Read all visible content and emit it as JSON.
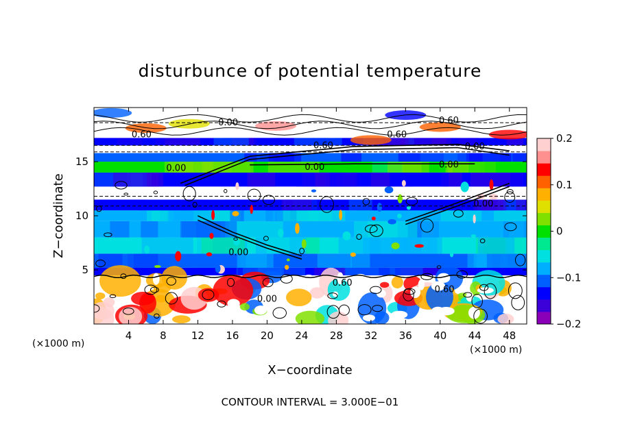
{
  "chart_data": {
    "type": "heatmap",
    "title": "disturbunce of potential temperature",
    "xlabel": "X−coordinate",
    "ylabel": "Z−coordinate",
    "x_unit": "(×1000 m)",
    "y_unit": "(×1000 m)",
    "xlim": [
      0,
      50
    ],
    "ylim": [
      0,
      20
    ],
    "x_ticks": [
      4,
      8,
      12,
      16,
      20,
      24,
      28,
      32,
      36,
      40,
      44,
      48
    ],
    "y_ticks": [
      5,
      10,
      15
    ],
    "colorbar": {
      "range": [
        -0.2,
        0.2
      ],
      "ticks": [
        {
          "value": 0.2,
          "label": "0.2"
        },
        {
          "value": 0.1,
          "label": "0.1"
        },
        {
          "value": 0,
          "label": "0"
        },
        {
          "value": -0.1,
          "label": "−0.1"
        },
        {
          "value": -0.2,
          "label": "−0.2"
        }
      ],
      "colors": [
        "#8a00b8",
        "#3c00d8",
        "#0000ff",
        "#0060ff",
        "#00b0ff",
        "#00e0e0",
        "#00e890",
        "#00e000",
        "#80e000",
        "#e0e000",
        "#ffb000",
        "#ff6000",
        "#ff0000",
        "#ff9090",
        "#ffd0d0"
      ]
    },
    "layers": [
      {
        "z_bottom": 0,
        "z_top": 4.5,
        "value": 0.05,
        "kind": "turbulent"
      },
      {
        "z_bottom": 4.5,
        "z_top": 5.2,
        "value": -0.13
      },
      {
        "z_bottom": 5.2,
        "z_top": 6.5,
        "value": -0.1
      },
      {
        "z_bottom": 6.5,
        "z_top": 8.0,
        "value": -0.06
      },
      {
        "z_bottom": 8.0,
        "z_top": 9.5,
        "value": -0.09
      },
      {
        "z_bottom": 9.5,
        "z_top": 10.5,
        "value": -0.07
      },
      {
        "z_bottom": 10.5,
        "z_top": 11.5,
        "value": -0.14
      },
      {
        "z_bottom": 11.5,
        "z_top": 12.7,
        "value": 0.3
      },
      {
        "z_bottom": 12.7,
        "z_top": 14.0,
        "value": -0.14
      },
      {
        "z_bottom": 14.0,
        "z_top": 15.0,
        "value": 0.01
      },
      {
        "z_bottom": 15.0,
        "z_top": 15.8,
        "value": -0.11
      },
      {
        "z_bottom": 15.8,
        "z_top": 16.5,
        "value": 0.3
      },
      {
        "z_bottom": 16.5,
        "z_top": 17.2,
        "value": -0.14
      },
      {
        "z_bottom": 17.2,
        "z_top": 18.8,
        "value": 0.3
      },
      {
        "z_bottom": 18.8,
        "z_top": 20.0,
        "value": 0.3
      }
    ],
    "contour_labels": [
      {
        "text": "0.00",
        "x": 15.5,
        "z": 18.6
      },
      {
        "text": "0.60",
        "x": 5.5,
        "z": 17.5
      },
      {
        "text": "0.60",
        "x": 41,
        "z": 18.8
      },
      {
        "text": "0.60",
        "x": 35,
        "z": 17.5
      },
      {
        "text": "0.60",
        "x": 26.5,
        "z": 16.5
      },
      {
        "text": "0.00",
        "x": 44,
        "z": 16.4
      },
      {
        "text": "0.00",
        "x": 9.5,
        "z": 14.4
      },
      {
        "text": "0.00",
        "x": 25.5,
        "z": 14.5
      },
      {
        "text": "0.00",
        "x": 41,
        "z": 14.7
      },
      {
        "text": "0.00",
        "x": 45,
        "z": 11.1
      },
      {
        "text": "0.00",
        "x": 16.7,
        "z": 6.6
      },
      {
        "text": "0.60",
        "x": 28.7,
        "z": 3.8
      },
      {
        "text": "0.00",
        "x": 20,
        "z": 2.3
      },
      {
        "text": "0.60",
        "x": 40.5,
        "z": 3.2
      }
    ],
    "footnote": "CONTOUR INTERVAL = 3.000E−01"
  }
}
